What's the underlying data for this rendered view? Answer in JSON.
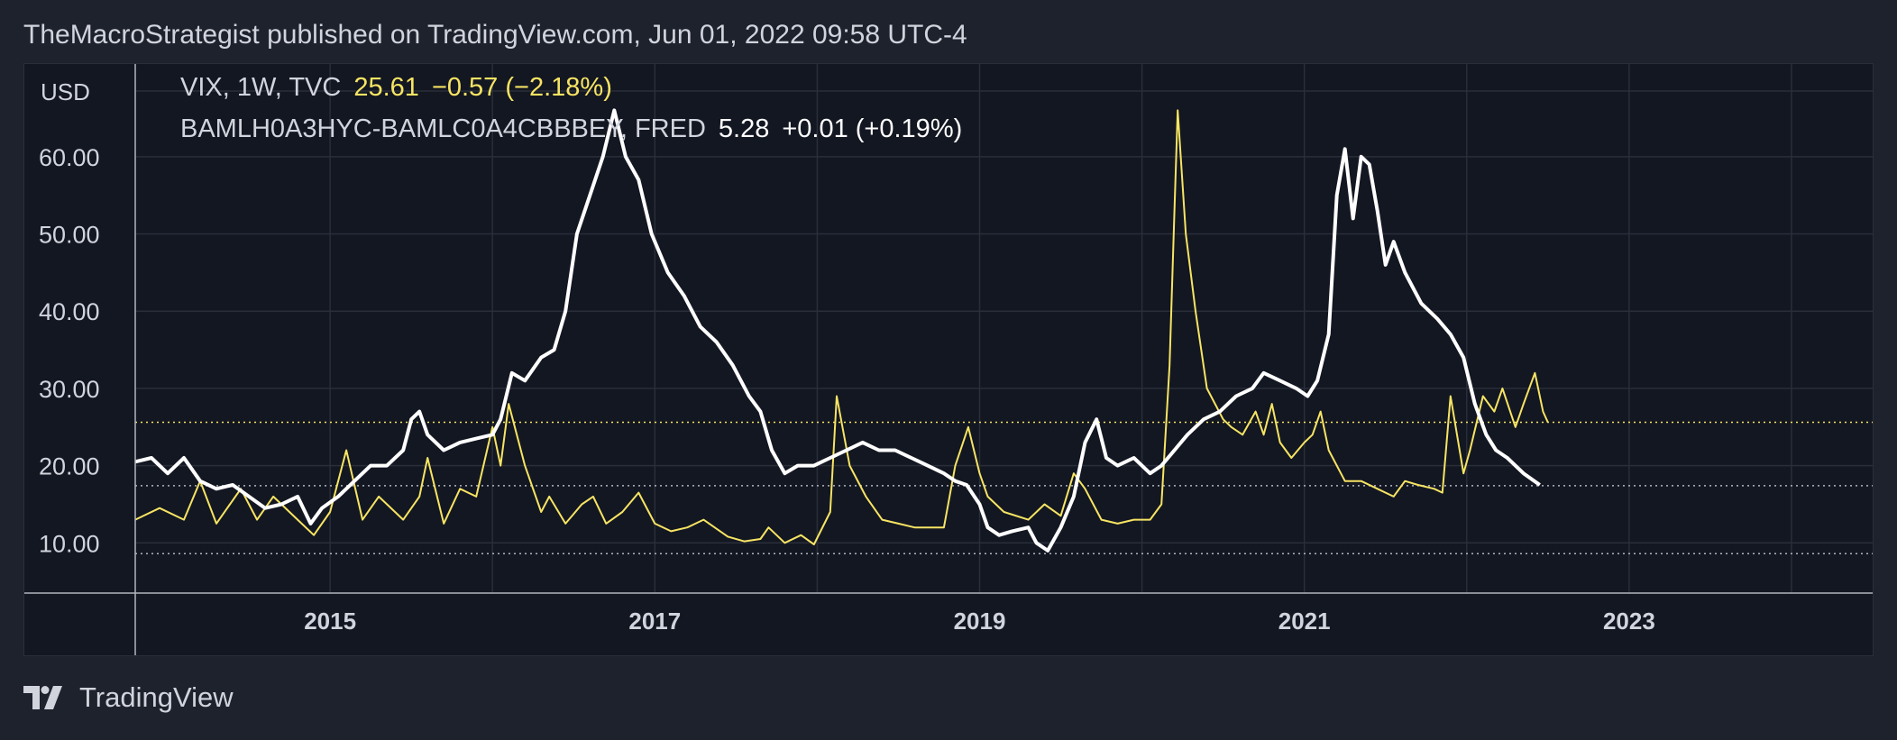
{
  "header": {
    "published_text": "TheMacroStrategist published on TradingView.com, Jun 01, 2022 09:58 UTC-4"
  },
  "legend": {
    "vix": {
      "label": "VIX, 1W, TVC",
      "value": "25.61",
      "change": "−0.57 (−2.18%)"
    },
    "spread": {
      "label": "BAMLH0A3HYC-BAMLC0A4CBBBEY, FRED",
      "value": "5.28",
      "change": "+0.01 (+0.19%)"
    }
  },
  "footer": {
    "brand": "TradingView"
  },
  "colors": {
    "background": "#1e222d",
    "plot_background": "#131722",
    "grid": "#2a2e39",
    "vix_line": "#f7e463",
    "spread_line": "#ffffff",
    "text": "#d1d4dc"
  },
  "chart_data": {
    "type": "line",
    "title": "",
    "xlabel": "",
    "ylabel": "USD",
    "y_ticks": [
      "10.00",
      "20.00",
      "30.00",
      "40.00",
      "50.00",
      "60.00"
    ],
    "x_ticks": [
      "2015",
      "2017",
      "2019",
      "2021",
      "2023"
    ],
    "xlim": [
      2013.8,
      2024.5
    ],
    "ylim": [
      3.5,
      72
    ],
    "grid": true,
    "reference_lines": [
      {
        "y": 25.61,
        "style": "dotted",
        "color": "#f7e463"
      },
      {
        "y": 17.4,
        "style": "dotted",
        "color": "#b2b5be"
      },
      {
        "y": 8.6,
        "style": "dotted",
        "color": "#b2b5be"
      }
    ],
    "series": [
      {
        "name": "VIX",
        "color": "#f7e463",
        "points": [
          [
            2013.8,
            13
          ],
          [
            2013.95,
            14.5
          ],
          [
            2014.1,
            13
          ],
          [
            2014.2,
            18
          ],
          [
            2014.3,
            12.5
          ],
          [
            2014.45,
            17
          ],
          [
            2014.55,
            13
          ],
          [
            2014.65,
            16
          ],
          [
            2014.8,
            13
          ],
          [
            2014.9,
            11
          ],
          [
            2015.0,
            14
          ],
          [
            2015.1,
            22
          ],
          [
            2015.2,
            13
          ],
          [
            2015.3,
            16
          ],
          [
            2015.45,
            13
          ],
          [
            2015.55,
            16
          ],
          [
            2015.6,
            21
          ],
          [
            2015.7,
            12.5
          ],
          [
            2015.8,
            17
          ],
          [
            2015.9,
            16
          ],
          [
            2016.0,
            25
          ],
          [
            2016.05,
            20
          ],
          [
            2016.1,
            28
          ],
          [
            2016.2,
            20
          ],
          [
            2016.3,
            14
          ],
          [
            2016.35,
            16
          ],
          [
            2016.45,
            12.5
          ],
          [
            2016.55,
            15
          ],
          [
            2016.62,
            16
          ],
          [
            2016.7,
            12.5
          ],
          [
            2016.8,
            14
          ],
          [
            2016.9,
            16.5
          ],
          [
            2017.0,
            12.5
          ],
          [
            2017.1,
            11.5
          ],
          [
            2017.2,
            12
          ],
          [
            2017.3,
            13
          ],
          [
            2017.45,
            10.8
          ],
          [
            2017.55,
            10.2
          ],
          [
            2017.65,
            10.5
          ],
          [
            2017.7,
            12
          ],
          [
            2017.8,
            10
          ],
          [
            2017.9,
            11
          ],
          [
            2017.98,
            9.8
          ],
          [
            2018.08,
            14
          ],
          [
            2018.12,
            29
          ],
          [
            2018.2,
            20
          ],
          [
            2018.3,
            16
          ],
          [
            2018.4,
            13
          ],
          [
            2018.5,
            12.5
          ],
          [
            2018.6,
            12
          ],
          [
            2018.7,
            12
          ],
          [
            2018.78,
            12
          ],
          [
            2018.85,
            20
          ],
          [
            2018.93,
            25
          ],
          [
            2019.0,
            19
          ],
          [
            2019.05,
            16
          ],
          [
            2019.15,
            14
          ],
          [
            2019.3,
            13
          ],
          [
            2019.4,
            15
          ],
          [
            2019.5,
            13.5
          ],
          [
            2019.58,
            19
          ],
          [
            2019.65,
            17
          ],
          [
            2019.75,
            13
          ],
          [
            2019.85,
            12.5
          ],
          [
            2019.95,
            13
          ],
          [
            2020.05,
            13
          ],
          [
            2020.12,
            15
          ],
          [
            2020.17,
            33
          ],
          [
            2020.2,
            53
          ],
          [
            2020.22,
            66
          ],
          [
            2020.27,
            50
          ],
          [
            2020.33,
            40
          ],
          [
            2020.4,
            30
          ],
          [
            2020.5,
            26
          ],
          [
            2020.55,
            25
          ],
          [
            2020.62,
            24
          ],
          [
            2020.7,
            27
          ],
          [
            2020.75,
            24
          ],
          [
            2020.8,
            28
          ],
          [
            2020.85,
            23
          ],
          [
            2020.92,
            21
          ],
          [
            2021.0,
            23
          ],
          [
            2021.05,
            24
          ],
          [
            2021.1,
            27
          ],
          [
            2021.15,
            22
          ],
          [
            2021.25,
            18
          ],
          [
            2021.35,
            18
          ],
          [
            2021.45,
            17
          ],
          [
            2021.55,
            16
          ],
          [
            2021.62,
            18
          ],
          [
            2021.7,
            17.5
          ],
          [
            2021.8,
            17
          ],
          [
            2021.85,
            16.5
          ],
          [
            2021.9,
            29
          ],
          [
            2021.98,
            19
          ],
          [
            2022.02,
            22
          ],
          [
            2022.1,
            29
          ],
          [
            2022.17,
            27
          ],
          [
            2022.22,
            30
          ],
          [
            2022.3,
            25
          ],
          [
            2022.35,
            28
          ],
          [
            2022.42,
            32
          ],
          [
            2022.47,
            27
          ],
          [
            2022.5,
            25.6
          ]
        ]
      },
      {
        "name": "BAMLH0A3HYC-BAMLC0A4CBBBEY",
        "color": "#ffffff",
        "points": [
          [
            2013.8,
            20.5
          ],
          [
            2013.9,
            21
          ],
          [
            2014.0,
            19
          ],
          [
            2014.1,
            21
          ],
          [
            2014.2,
            18
          ],
          [
            2014.3,
            17
          ],
          [
            2014.4,
            17.5
          ],
          [
            2014.5,
            16
          ],
          [
            2014.6,
            14.5
          ],
          [
            2014.7,
            15
          ],
          [
            2014.8,
            16
          ],
          [
            2014.88,
            12.5
          ],
          [
            2014.95,
            14.5
          ],
          [
            2015.05,
            16
          ],
          [
            2015.15,
            18
          ],
          [
            2015.25,
            20
          ],
          [
            2015.35,
            20
          ],
          [
            2015.45,
            22
          ],
          [
            2015.5,
            26
          ],
          [
            2015.55,
            27
          ],
          [
            2015.6,
            24
          ],
          [
            2015.7,
            22
          ],
          [
            2015.8,
            23
          ],
          [
            2015.9,
            23.5
          ],
          [
            2016.0,
            24
          ],
          [
            2016.05,
            26
          ],
          [
            2016.12,
            32
          ],
          [
            2016.2,
            31
          ],
          [
            2016.3,
            34
          ],
          [
            2016.38,
            35
          ],
          [
            2016.45,
            40
          ],
          [
            2016.52,
            50
          ],
          [
            2016.6,
            55
          ],
          [
            2016.68,
            60
          ],
          [
            2016.75,
            66
          ],
          [
            2016.82,
            60
          ],
          [
            2016.9,
            57
          ],
          [
            2016.98,
            50
          ],
          [
            2017.08,
            45
          ],
          [
            2017.18,
            42
          ],
          [
            2017.28,
            38
          ],
          [
            2017.38,
            36
          ],
          [
            2017.48,
            33
          ],
          [
            2017.58,
            29
          ],
          [
            2017.65,
            27
          ],
          [
            2017.72,
            22
          ],
          [
            2017.8,
            19
          ],
          [
            2017.88,
            20
          ],
          [
            2017.98,
            20
          ],
          [
            2018.08,
            21
          ],
          [
            2018.18,
            22
          ],
          [
            2018.28,
            23
          ],
          [
            2018.38,
            22
          ],
          [
            2018.48,
            22
          ],
          [
            2018.58,
            21
          ],
          [
            2018.68,
            20
          ],
          [
            2018.78,
            19
          ],
          [
            2018.85,
            18
          ],
          [
            2018.92,
            17.5
          ],
          [
            2019.0,
            15
          ],
          [
            2019.05,
            12
          ],
          [
            2019.12,
            11
          ],
          [
            2019.2,
            11.5
          ],
          [
            2019.3,
            12
          ],
          [
            2019.35,
            10
          ],
          [
            2019.42,
            9
          ],
          [
            2019.5,
            12
          ],
          [
            2019.58,
            16
          ],
          [
            2019.65,
            23
          ],
          [
            2019.72,
            26
          ],
          [
            2019.78,
            21
          ],
          [
            2019.85,
            20
          ],
          [
            2019.95,
            21
          ],
          [
            2020.05,
            19
          ],
          [
            2020.12,
            20
          ],
          [
            2020.2,
            22
          ],
          [
            2020.28,
            24
          ],
          [
            2020.38,
            26
          ],
          [
            2020.48,
            27
          ],
          [
            2020.58,
            29
          ],
          [
            2020.68,
            30
          ],
          [
            2020.75,
            32
          ],
          [
            2020.85,
            31
          ],
          [
            2020.95,
            30
          ],
          [
            2021.02,
            29
          ],
          [
            2021.08,
            31
          ],
          [
            2021.15,
            37
          ],
          [
            2021.2,
            55
          ],
          [
            2021.25,
            61
          ],
          [
            2021.3,
            52
          ],
          [
            2021.35,
            60
          ],
          [
            2021.4,
            59
          ],
          [
            2021.45,
            53
          ],
          [
            2021.5,
            46
          ],
          [
            2021.55,
            49
          ],
          [
            2021.62,
            45
          ],
          [
            2021.72,
            41
          ],
          [
            2021.82,
            39
          ],
          [
            2021.9,
            37
          ],
          [
            2021.98,
            34
          ],
          [
            2022.05,
            28
          ],
          [
            2022.12,
            24
          ],
          [
            2022.18,
            22
          ],
          [
            2022.25,
            21
          ],
          [
            2022.35,
            19
          ],
          [
            2022.45,
            17.5
          ]
        ]
      }
    ]
  }
}
